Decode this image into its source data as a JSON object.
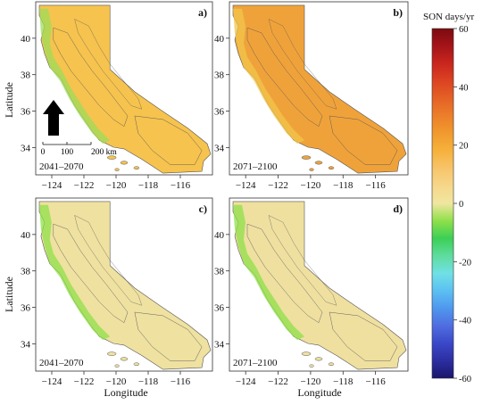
{
  "colorbar": {
    "title": "SON days/yr",
    "tick_labels": [
      "60",
      "40",
      "20",
      "0",
      "-20",
      "-40",
      "-60"
    ],
    "min": -60,
    "max": 60,
    "colors": [
      "#19166b",
      "#2c2ea0",
      "#3b48c8",
      "#4f6de0",
      "#4f97ee",
      "#5cc0f2",
      "#70e0e6",
      "#5fdc9e",
      "#3ccf55",
      "#8fe04a",
      "#f0e6a0",
      "#f6d78a",
      "#f7c46a",
      "#f6b23c",
      "#f19a2e",
      "#ec7f2a",
      "#e46226",
      "#dc4322",
      "#c9261d",
      "#a41419",
      "#7c0b10"
    ]
  },
  "axes": {
    "xlabel": "Longitude",
    "ylabel": "Latitude",
    "x_ticks": [
      "−124",
      "−122",
      "−120",
      "−118",
      "−116"
    ],
    "y_ticks": [
      "40",
      "38",
      "36",
      "34"
    ]
  },
  "scalebar": {
    "labels": [
      "0",
      "100",
      "200 km"
    ]
  },
  "panels": [
    {
      "letter": "a)",
      "period": "2041–2070",
      "base_color": "#f6c34e",
      "mid_color": "#eda93b",
      "coast_color": "#9ddc5a"
    },
    {
      "letter": "b)",
      "period": "2071–2100",
      "base_color": "#f0a23a",
      "mid_color": "#e9862c",
      "coast_color": "#f2c64c"
    },
    {
      "letter": "c)",
      "period": "2041–2070",
      "base_color": "#efe1a0",
      "mid_color": "#f2cc6a",
      "coast_color": "#8fe04a"
    },
    {
      "letter": "d)",
      "period": "2071–2100",
      "base_color": "#efe0a0",
      "mid_color": "#f2c255",
      "coast_color": "#8fe04a"
    }
  ]
}
